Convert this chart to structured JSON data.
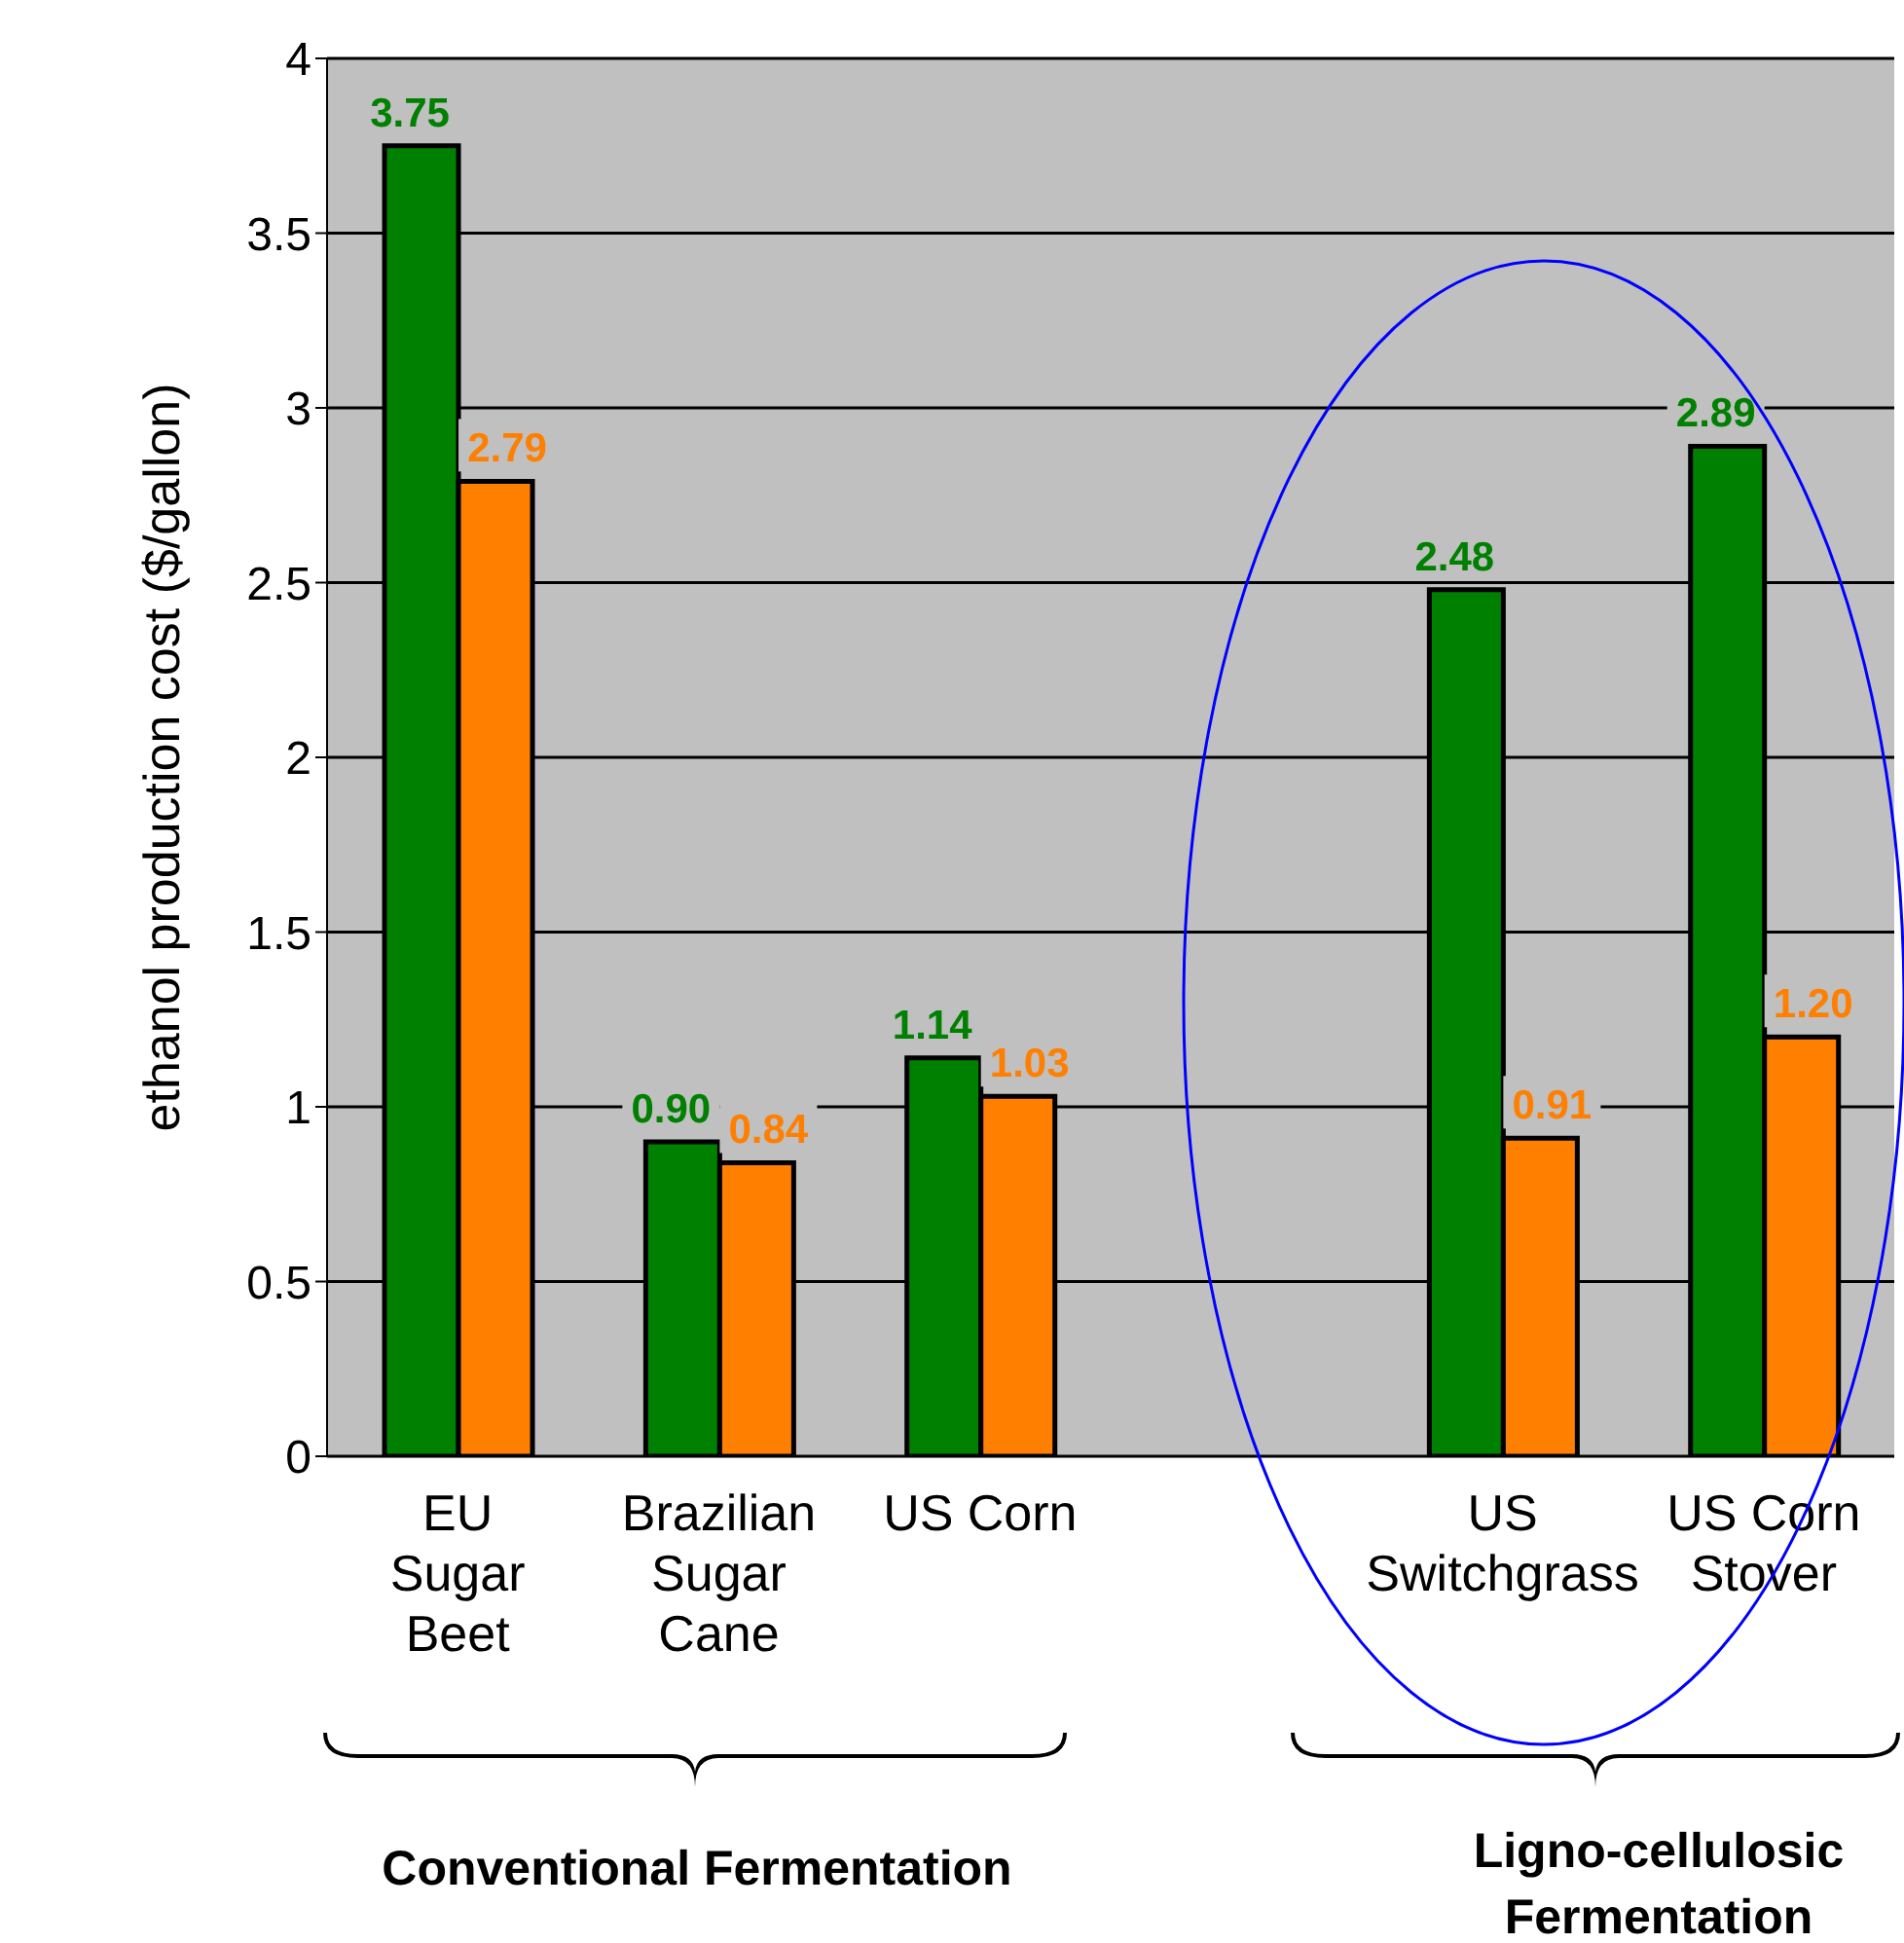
{
  "chart_data": {
    "type": "bar",
    "ylabel": "ethanol production cost ($/gallon)",
    "categories": [
      "EU Sugar Beet",
      "Brazilian Sugar Cane",
      "US Corn",
      null,
      "US Switchgrass",
      "US Corn Stover"
    ],
    "series": [
      {
        "color": "#008000",
        "values": [
          3.75,
          0.9,
          1.14,
          null,
          2.48,
          2.89
        ],
        "value_labels": [
          "3.75",
          "0.90",
          "1.14",
          null,
          "2.48",
          "2.89"
        ]
      },
      {
        "color": "#ff7f00",
        "values": [
          2.79,
          0.84,
          1.03,
          null,
          0.91,
          1.2
        ],
        "value_labels": [
          "2.79",
          "0.84",
          "1.03",
          null,
          "0.91",
          "1.20"
        ]
      }
    ],
    "ylim": [
      0,
      4
    ],
    "yticks": [
      0,
      0.5,
      1,
      1.5,
      2,
      2.5,
      3,
      3.5,
      4
    ],
    "grid": "y",
    "annotations": [
      "Conventional Fermentation",
      "Ligno-cellulosic Fermentation"
    ]
  }
}
